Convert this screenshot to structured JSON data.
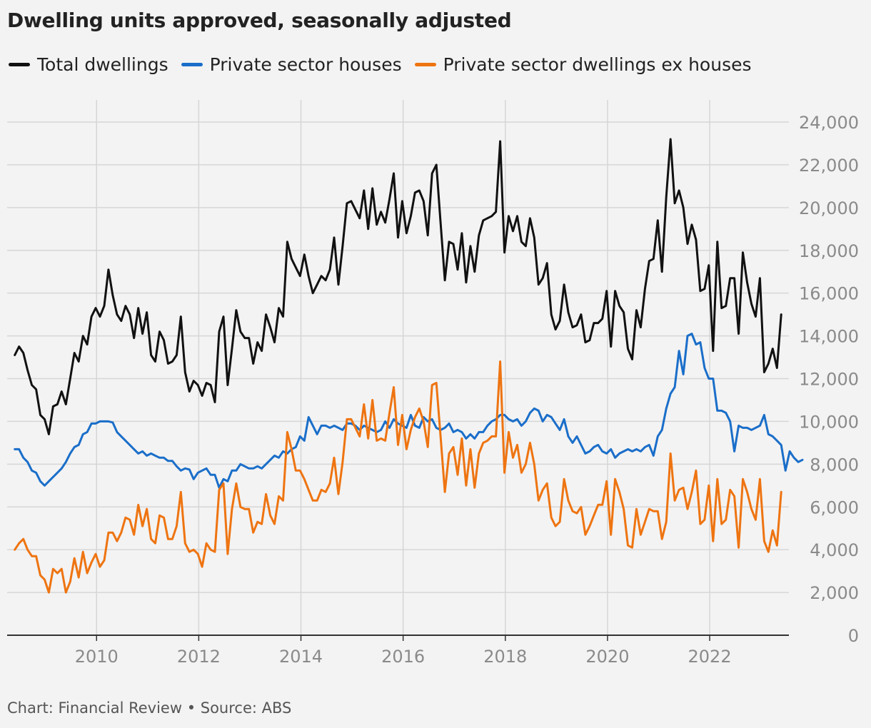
{
  "chart_data": {
    "type": "line",
    "title": "Dwelling units approved, seasonally adjusted",
    "xlabel": "",
    "ylabel": "",
    "xlim": [
      2008.25,
      2023.55
    ],
    "ylim": [
      0,
      24000
    ],
    "x_start_year": 2008.4,
    "x_step_years": 0.08333,
    "x_ticks": [
      2010,
      2012,
      2014,
      2016,
      2018,
      2020,
      2022
    ],
    "x_tick_labels": [
      "2010",
      "2012",
      "2014",
      "2016",
      "2018",
      "2020",
      "2022"
    ],
    "y_ticks": [
      0,
      2000,
      4000,
      6000,
      8000,
      10000,
      12000,
      14000,
      16000,
      18000,
      20000,
      22000,
      24000
    ],
    "y_tick_labels": [
      "0",
      "2,000",
      "4,000",
      "6,000",
      "8,000",
      "10,000",
      "12,000",
      "14,000",
      "16,000",
      "18,000",
      "20,000",
      "22,000",
      "24,000"
    ],
    "grid": true,
    "legend_position": "top-left",
    "series": [
      {
        "name": "Total dwellings",
        "color": "#111111",
        "values": [
          13100,
          13500,
          13200,
          12400,
          11700,
          11500,
          10300,
          10100,
          9400,
          10700,
          10800,
          11400,
          10800,
          12000,
          13200,
          12800,
          14000,
          13600,
          14900,
          15300,
          14900,
          15400,
          17100,
          15900,
          15000,
          14700,
          15400,
          15000,
          13900,
          15300,
          14100,
          15100,
          13100,
          12800,
          14200,
          13800,
          12700,
          12800,
          13100,
          14900,
          12300,
          11400,
          11900,
          11700,
          11200,
          11800,
          11700,
          10900,
          14200,
          14900,
          11700,
          13400,
          15200,
          14200,
          13900,
          13900,
          12700,
          13700,
          13300,
          15000,
          14400,
          13700,
          15300,
          14900,
          18400,
          17600,
          17200,
          16800,
          17800,
          16800,
          16000,
          16400,
          16800,
          16600,
          17100,
          18600,
          16400,
          18200,
          20200,
          20300,
          19900,
          19500,
          20800,
          19000,
          20900,
          19200,
          19800,
          19300,
          20400,
          21600,
          18600,
          20300,
          18800,
          19600,
          20700,
          20800,
          20300,
          18700,
          21600,
          22000,
          19300,
          16600,
          18400,
          18300,
          17100,
          18800,
          16500,
          18200,
          17000,
          18700,
          19400,
          19500,
          19600,
          19800,
          23100,
          17900,
          19600,
          18900,
          19600,
          18400,
          18200,
          19500,
          18600,
          16400,
          16700,
          17400,
          15000,
          14300,
          14700,
          16400,
          15100,
          14400,
          14500,
          15000,
          13700,
          13800,
          14600,
          14600,
          14800,
          16100,
          13500,
          16100,
          15400,
          15100,
          13400,
          12900,
          15200,
          14400,
          16200,
          17500,
          17600,
          19400,
          17000,
          20500,
          23200,
          20200,
          20800,
          20000,
          18300,
          19200,
          18500,
          16100,
          16200,
          17300,
          13300,
          18400,
          15300,
          15400,
          16700,
          16700,
          14100,
          17900,
          16500,
          15500,
          14900,
          16700,
          12300,
          12700,
          13400,
          12500,
          15000
        ]
      },
      {
        "name": "Private sector houses",
        "color": "#1a6ec9",
        "values": [
          8700,
          8700,
          8300,
          8100,
          7700,
          7600,
          7200,
          7000,
          7200,
          7400,
          7600,
          7800,
          8100,
          8500,
          8800,
          8900,
          9400,
          9500,
          9900,
          9900,
          10000,
          10000,
          10000,
          9950,
          9500,
          9300,
          9100,
          8900,
          8700,
          8500,
          8600,
          8400,
          8500,
          8400,
          8300,
          8300,
          8150,
          8150,
          7900,
          7700,
          7800,
          7750,
          7300,
          7600,
          7700,
          7800,
          7500,
          7500,
          6900,
          7300,
          7200,
          7700,
          7700,
          8000,
          7900,
          7800,
          7800,
          7900,
          7800,
          8000,
          8200,
          8400,
          8300,
          8600,
          8500,
          8700,
          8800,
          9300,
          9100,
          10200,
          9800,
          9400,
          9800,
          9800,
          9700,
          9800,
          9700,
          9600,
          9900,
          9900,
          9800,
          9600,
          9800,
          9700,
          9600,
          9500,
          9600,
          10000,
          9700,
          10100,
          9900,
          9800,
          9700,
          10300,
          9800,
          9700,
          10200,
          10000,
          10100,
          9700,
          9600,
          9700,
          9900,
          9500,
          9600,
          9500,
          9200,
          9400,
          9200,
          9500,
          9500,
          9800,
          10000,
          10100,
          10300,
          10300,
          10100,
          10000,
          10100,
          9800,
          10000,
          10400,
          10600,
          10500,
          10000,
          10300,
          10200,
          9900,
          9600,
          10100,
          9300,
          9000,
          9300,
          8900,
          8500,
          8600,
          8800,
          8900,
          8600,
          8500,
          8700,
          8300,
          8500,
          8600,
          8700,
          8600,
          8700,
          8600,
          8800,
          8900,
          8400,
          9300,
          9600,
          10600,
          11300,
          11600,
          13300,
          12200,
          14000,
          14100,
          13600,
          13700,
          12500,
          12000,
          12000,
          10500,
          10500,
          10400,
          10000,
          8600,
          9800,
          9700,
          9700,
          9600,
          9700,
          9800,
          10300,
          9400,
          9300,
          9100,
          8900,
          7700,
          8600,
          8300,
          8100,
          8200
        ]
      },
      {
        "name": "Private sector dwellings ex houses",
        "color": "#ee7411",
        "values": [
          4000,
          4300,
          4500,
          4000,
          3700,
          3700,
          2800,
          2600,
          2000,
          3100,
          2900,
          3100,
          2000,
          2500,
          3600,
          2700,
          3900,
          2900,
          3400,
          3800,
          3200,
          3500,
          4800,
          4800,
          4400,
          4800,
          5500,
          5400,
          4700,
          6100,
          5100,
          5900,
          4500,
          4300,
          5600,
          5500,
          4500,
          4500,
          5100,
          6700,
          4300,
          3900,
          4000,
          3800,
          3200,
          4300,
          4000,
          3900,
          6800,
          7100,
          3800,
          5900,
          7100,
          6000,
          5900,
          5900,
          4800,
          5300,
          5200,
          6600,
          5600,
          5200,
          6500,
          6300,
          9500,
          8700,
          7700,
          7700,
          7300,
          6800,
          6300,
          6300,
          6800,
          6700,
          7100,
          8300,
          6600,
          8100,
          10100,
          10100,
          9700,
          9300,
          10800,
          9200,
          11000,
          9100,
          9200,
          9100,
          10400,
          11600,
          8900,
          10300,
          8700,
          9600,
          10200,
          10600,
          10000,
          8800,
          11700,
          11800,
          9300,
          6700,
          8500,
          8800,
          7500,
          9200,
          7000,
          8700,
          6900,
          8500,
          9000,
          9100,
          9300,
          9300,
          12800,
          7600,
          9500,
          8300,
          8900,
          7600,
          8000,
          9000,
          8000,
          6300,
          6800,
          7100,
          5500,
          5100,
          5300,
          7300,
          6300,
          5800,
          5700,
          6000,
          4700,
          5100,
          5600,
          6100,
          6100,
          7200,
          4700,
          7300,
          6700,
          5900,
          4200,
          4100,
          5900,
          4700,
          5300,
          5900,
          5800,
          5800,
          4500,
          5300,
          8500,
          6300,
          6800,
          6900,
          5900,
          6700,
          7700,
          5200,
          5400,
          7000,
          4400,
          7300,
          5200,
          5400,
          6800,
          6500,
          4100,
          7300,
          6700,
          5900,
          5400,
          7300,
          4400,
          3900,
          4900,
          4200,
          6700
        ]
      }
    ]
  },
  "footer": {
    "text": "Chart: Financial Review • Source: ABS"
  }
}
